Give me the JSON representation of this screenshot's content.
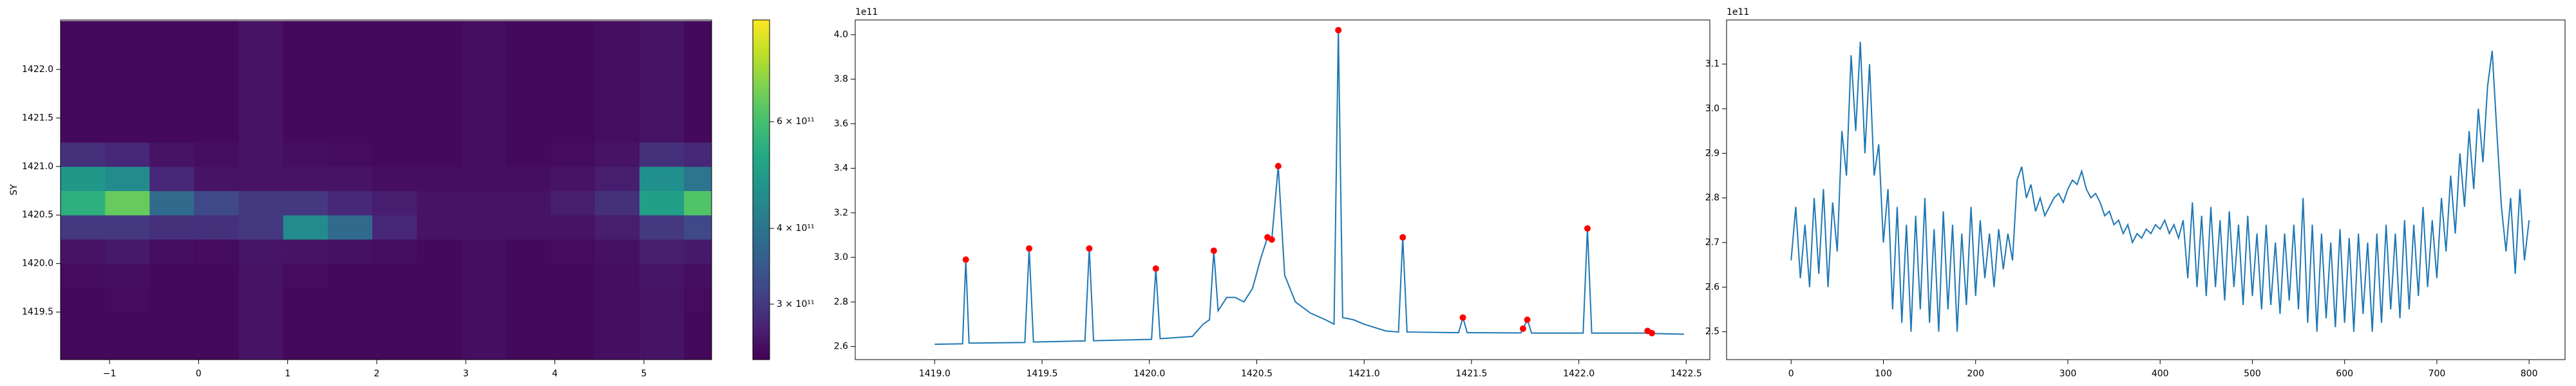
{
  "chart_data": [
    {
      "type": "heatmap",
      "ylabel": "SY",
      "colormap": "viridis",
      "norm": "log",
      "x": [
        -1.3,
        -0.8,
        -0.3,
        0.2,
        0.7,
        1.2,
        1.7,
        2.2,
        2.7,
        3.2,
        3.7,
        4.2,
        4.7,
        5.2,
        5.7
      ],
      "y": [
        1419.125,
        1419.375,
        1419.625,
        1419.875,
        1420.125,
        1420.375,
        1420.625,
        1420.875,
        1421.125,
        1421.375,
        1421.625,
        1421.875,
        1422.125,
        1422.375
      ],
      "z": [
        [
          250000000000.0,
          250000000000.0,
          250000000000.0,
          250000000000.0,
          260000000000.0,
          250000000000.0,
          250000000000.0,
          250000000000.0,
          250000000000.0,
          255000000000.0,
          250000000000.0,
          250000000000.0,
          255000000000.0,
          260000000000.0,
          250000000000.0
        ],
        [
          250000000000.0,
          250000000000.0,
          250000000000.0,
          250000000000.0,
          260000000000.0,
          250000000000.0,
          250000000000.0,
          250000000000.0,
          250000000000.0,
          255000000000.0,
          250000000000.0,
          250000000000.0,
          255000000000.0,
          260000000000.0,
          250000000000.0
        ],
        [
          250000000000.0,
          252000000000.0,
          250000000000.0,
          250000000000.0,
          260000000000.0,
          250000000000.0,
          250000000000.0,
          250000000000.0,
          250000000000.0,
          255000000000.0,
          250000000000.0,
          250000000000.0,
          255000000000.0,
          260000000000.0,
          252000000000.0
        ],
        [
          252000000000.0,
          255000000000.0,
          250000000000.0,
          250000000000.0,
          260000000000.0,
          252000000000.0,
          250000000000.0,
          250000000000.0,
          250000000000.0,
          255000000000.0,
          250000000000.0,
          250000000000.0,
          255000000000.0,
          262000000000.0,
          255000000000.0
        ],
        [
          260000000000.0,
          265000000000.0,
          255000000000.0,
          252000000000.0,
          262000000000.0,
          260000000000.0,
          258000000000.0,
          255000000000.0,
          250000000000.0,
          255000000000.0,
          250000000000.0,
          252000000000.0,
          258000000000.0,
          270000000000.0,
          265000000000.0
        ],
        [
          300000000000.0,
          300000000000.0,
          290000000000.0,
          290000000000.0,
          300000000000.0,
          450000000000.0,
          380000000000.0,
          280000000000.0,
          260000000000.0,
          260000000000.0,
          260000000000.0,
          260000000000.0,
          270000000000.0,
          300000000000.0,
          320000000000.0
        ],
        [
          550000000000.0,
          650000000000.0,
          380000000000.0,
          320000000000.0,
          300000000000.0,
          300000000000.0,
          280000000000.0,
          270000000000.0,
          260000000000.0,
          260000000000.0,
          260000000000.0,
          270000000000.0,
          290000000000.0,
          500000000000.0,
          620000000000.0
        ],
        [
          480000000000.0,
          450000000000.0,
          280000000000.0,
          260000000000.0,
          260000000000.0,
          260000000000.0,
          260000000000.0,
          255000000000.0,
          255000000000.0,
          255000000000.0,
          255000000000.0,
          260000000000.0,
          270000000000.0,
          460000000000.0,
          400000000000.0
        ],
        [
          290000000000.0,
          280000000000.0,
          260000000000.0,
          255000000000.0,
          260000000000.0,
          255000000000.0,
          252000000000.0,
          250000000000.0,
          250000000000.0,
          255000000000.0,
          250000000000.0,
          252000000000.0,
          260000000000.0,
          290000000000.0,
          280000000000.0
        ],
        [
          250000000000.0,
          250000000000.0,
          250000000000.0,
          250000000000.0,
          260000000000.0,
          250000000000.0,
          250000000000.0,
          250000000000.0,
          250000000000.0,
          255000000000.0,
          250000000000.0,
          250000000000.0,
          255000000000.0,
          260000000000.0,
          250000000000.0
        ],
        [
          250000000000.0,
          250000000000.0,
          250000000000.0,
          250000000000.0,
          260000000000.0,
          250000000000.0,
          250000000000.0,
          250000000000.0,
          250000000000.0,
          255000000000.0,
          250000000000.0,
          250000000000.0,
          255000000000.0,
          260000000000.0,
          250000000000.0
        ],
        [
          250000000000.0,
          250000000000.0,
          250000000000.0,
          250000000000.0,
          260000000000.0,
          250000000000.0,
          250000000000.0,
          250000000000.0,
          250000000000.0,
          255000000000.0,
          250000000000.0,
          250000000000.0,
          255000000000.0,
          260000000000.0,
          250000000000.0
        ],
        [
          250000000000.0,
          250000000000.0,
          250000000000.0,
          250000000000.0,
          260000000000.0,
          250000000000.0,
          250000000000.0,
          250000000000.0,
          250000000000.0,
          255000000000.0,
          250000000000.0,
          250000000000.0,
          255000000000.0,
          260000000000.0,
          250000000000.0
        ],
        [
          250000000000.0,
          250000000000.0,
          250000000000.0,
          250000000000.0,
          260000000000.0,
          250000000000.0,
          250000000000.0,
          250000000000.0,
          250000000000.0,
          255000000000.0,
          250000000000.0,
          250000000000.0,
          255000000000.0,
          260000000000.0,
          250000000000.0
        ]
      ],
      "xlim": [
        -1.55,
        5.76
      ],
      "ylim": [
        1419.01,
        1422.51
      ],
      "xticks": [
        {
          "value": -1,
          "label": "−1"
        },
        0,
        1,
        2,
        3,
        4,
        5
      ],
      "yticks": [
        {
          "value": 1419.5,
          "label": "1419.5"
        },
        {
          "value": 1420,
          "label": "1420.0"
        },
        {
          "value": 1420.5,
          "label": "1420.5"
        },
        {
          "value": 1421,
          "label": "1421.0"
        },
        {
          "value": 1421.5,
          "label": "1421.5"
        },
        {
          "value": 1422,
          "label": "1422.0"
        }
      ],
      "clim": [
        243000000000.0,
        883000000000.0
      ],
      "cticks": [
        {
          "value": 300000000000.0,
          "label": "3 × 10¹¹"
        },
        {
          "value": 400000000000.0,
          "label": "4 × 10¹¹"
        },
        {
          "value": 600000000000.0,
          "label": "6 × 10¹¹"
        }
      ]
    },
    {
      "type": "line",
      "offset_text": "1e11",
      "series": [
        {
          "color": "#1f77b4",
          "x": [
            1419.0,
            1419.13,
            1419.145,
            1419.16,
            1419.42,
            1419.44,
            1419.46,
            1419.7,
            1419.72,
            1419.74,
            1420.01,
            1420.03,
            1420.05,
            1420.2,
            1420.25,
            1420.28,
            1420.3,
            1420.32,
            1420.36,
            1420.4,
            1420.44,
            1420.48,
            1420.52,
            1420.55,
            1420.57,
            1420.6,
            1420.63,
            1420.68,
            1420.75,
            1420.82,
            1420.86,
            1420.88,
            1420.9,
            1420.95,
            1421.0,
            1421.1,
            1421.16,
            1421.18,
            1421.2,
            1421.44,
            1421.46,
            1421.48,
            1421.73,
            1421.74,
            1421.76,
            1421.78,
            1422.02,
            1422.04,
            1422.06,
            1422.31,
            1422.32,
            1422.34,
            1422.36,
            1422.49
          ],
          "values": [
            2.61,
            2.612,
            2.99,
            2.615,
            2.618,
            3.04,
            2.62,
            2.625,
            3.04,
            2.626,
            2.632,
            2.95,
            2.635,
            2.645,
            2.7,
            2.72,
            3.03,
            2.76,
            2.82,
            2.82,
            2.8,
            2.86,
            3.0,
            3.09,
            3.08,
            3.41,
            2.92,
            2.8,
            2.75,
            2.72,
            2.7,
            4.02,
            2.73,
            2.72,
            2.7,
            2.67,
            2.665,
            3.09,
            2.665,
            2.662,
            2.73,
            2.662,
            2.661,
            2.68,
            2.72,
            2.66,
            2.66,
            3.13,
            2.66,
            2.66,
            2.67,
            2.66,
            2.658,
            2.655
          ]
        },
        {
          "type": "scatter",
          "color": "#ff0000",
          "x": [
            1419.145,
            1419.44,
            1419.72,
            1420.03,
            1420.3,
            1420.55,
            1420.57,
            1420.6,
            1420.88,
            1421.18,
            1421.46,
            1421.74,
            1421.76,
            1422.04,
            1422.32,
            1422.34
          ],
          "values": [
            2.99,
            3.04,
            3.04,
            2.95,
            3.03,
            3.09,
            3.08,
            3.41,
            4.02,
            3.09,
            2.73,
            2.68,
            2.72,
            3.13,
            2.67,
            2.66
          ]
        }
      ],
      "xlim": [
        1418.63,
        1422.61
      ],
      "ylim": [
        2.541,
        4.066
      ],
      "xticks": [
        {
          "value": 1419,
          "label": "1419.0"
        },
        {
          "value": 1419.5,
          "label": "1419.5"
        },
        {
          "value": 1420,
          "label": "1420.0"
        },
        {
          "value": 1420.5,
          "label": "1420.5"
        },
        {
          "value": 1421,
          "label": "1421.0"
        },
        {
          "value": 1421.5,
          "label": "1421.5"
        },
        {
          "value": 1422,
          "label": "1422.0"
        },
        {
          "value": 1422.5,
          "label": "1422.5"
        }
      ],
      "yticks": [
        2.6,
        2.8,
        {
          "value": 3,
          "label": "3.0"
        },
        3.2,
        3.4,
        3.6,
        3.8,
        {
          "value": 4,
          "label": "4.0"
        }
      ]
    },
    {
      "type": "line",
      "offset_text": "1e11",
      "series": [
        {
          "color": "#1f77b4",
          "x": [
            0,
            5,
            10,
            15,
            20,
            25,
            30,
            35,
            40,
            45,
            50,
            55,
            60,
            65,
            70,
            75,
            80,
            85,
            90,
            95,
            100,
            105,
            110,
            115,
            120,
            125,
            130,
            135,
            140,
            145,
            150,
            155,
            160,
            165,
            170,
            175,
            180,
            185,
            190,
            195,
            200,
            205,
            210,
            215,
            220,
            225,
            230,
            235,
            240,
            245,
            250,
            255,
            260,
            265,
            270,
            275,
            280,
            285,
            290,
            295,
            300,
            305,
            310,
            315,
            320,
            325,
            330,
            335,
            340,
            345,
            350,
            355,
            360,
            365,
            370,
            375,
            380,
            385,
            390,
            395,
            400,
            405,
            410,
            415,
            420,
            425,
            430,
            435,
            440,
            445,
            450,
            455,
            460,
            465,
            470,
            475,
            480,
            485,
            490,
            495,
            500,
            505,
            510,
            515,
            520,
            525,
            530,
            535,
            540,
            545,
            550,
            555,
            560,
            565,
            570,
            575,
            580,
            585,
            590,
            595,
            600,
            605,
            610,
            615,
            620,
            625,
            630,
            635,
            640,
            645,
            650,
            655,
            660,
            665,
            670,
            675,
            680,
            685,
            690,
            695,
            700,
            705,
            710,
            715,
            720,
            725,
            730,
            735,
            740,
            745,
            750,
            755,
            760,
            765,
            770,
            775,
            780,
            785,
            790,
            795,
            800
          ],
          "values": [
            2.66,
            2.78,
            2.62,
            2.74,
            2.6,
            2.8,
            2.63,
            2.82,
            2.6,
            2.79,
            2.68,
            2.95,
            2.85,
            3.12,
            2.95,
            3.15,
            2.9,
            3.1,
            2.85,
            2.92,
            2.7,
            2.82,
            2.55,
            2.78,
            2.52,
            2.74,
            2.5,
            2.76,
            2.55,
            2.8,
            2.52,
            2.73,
            2.5,
            2.77,
            2.55,
            2.74,
            2.5,
            2.72,
            2.56,
            2.78,
            2.58,
            2.75,
            2.62,
            2.72,
            2.6,
            2.73,
            2.64,
            2.72,
            2.66,
            2.84,
            2.87,
            2.8,
            2.83,
            2.77,
            2.8,
            2.76,
            2.78,
            2.8,
            2.81,
            2.79,
            2.82,
            2.84,
            2.83,
            2.86,
            2.82,
            2.8,
            2.81,
            2.79,
            2.76,
            2.77,
            2.74,
            2.75,
            2.72,
            2.74,
            2.7,
            2.72,
            2.71,
            2.73,
            2.72,
            2.74,
            2.73,
            2.75,
            2.72,
            2.74,
            2.71,
            2.75,
            2.62,
            2.79,
            2.6,
            2.76,
            2.58,
            2.78,
            2.6,
            2.75,
            2.57,
            2.77,
            2.6,
            2.74,
            2.56,
            2.76,
            2.58,
            2.72,
            2.55,
            2.74,
            2.56,
            2.7,
            2.54,
            2.72,
            2.57,
            2.74,
            2.55,
            2.8,
            2.52,
            2.74,
            2.5,
            2.72,
            2.53,
            2.7,
            2.51,
            2.73,
            2.52,
            2.71,
            2.5,
            2.72,
            2.54,
            2.7,
            2.5,
            2.72,
            2.52,
            2.74,
            2.55,
            2.72,
            2.53,
            2.75,
            2.55,
            2.74,
            2.58,
            2.78,
            2.6,
            2.75,
            2.62,
            2.8,
            2.68,
            2.85,
            2.72,
            2.9,
            2.78,
            2.95,
            2.82,
            3.0,
            2.88,
            3.05,
            3.13,
            2.95,
            2.78,
            2.68,
            2.8,
            2.63,
            2.82,
            2.66,
            2.75
          ]
        }
      ],
      "xlim": [
        -70,
        839
      ],
      "ylim": [
        2.4375,
        3.199
      ],
      "xticks": [
        0,
        100,
        200,
        300,
        400,
        500,
        600,
        700,
        800
      ],
      "yticks": [
        2.5,
        2.6,
        2.7,
        2.8,
        2.9,
        {
          "value": 3,
          "label": "3.0"
        },
        3.1
      ]
    }
  ]
}
